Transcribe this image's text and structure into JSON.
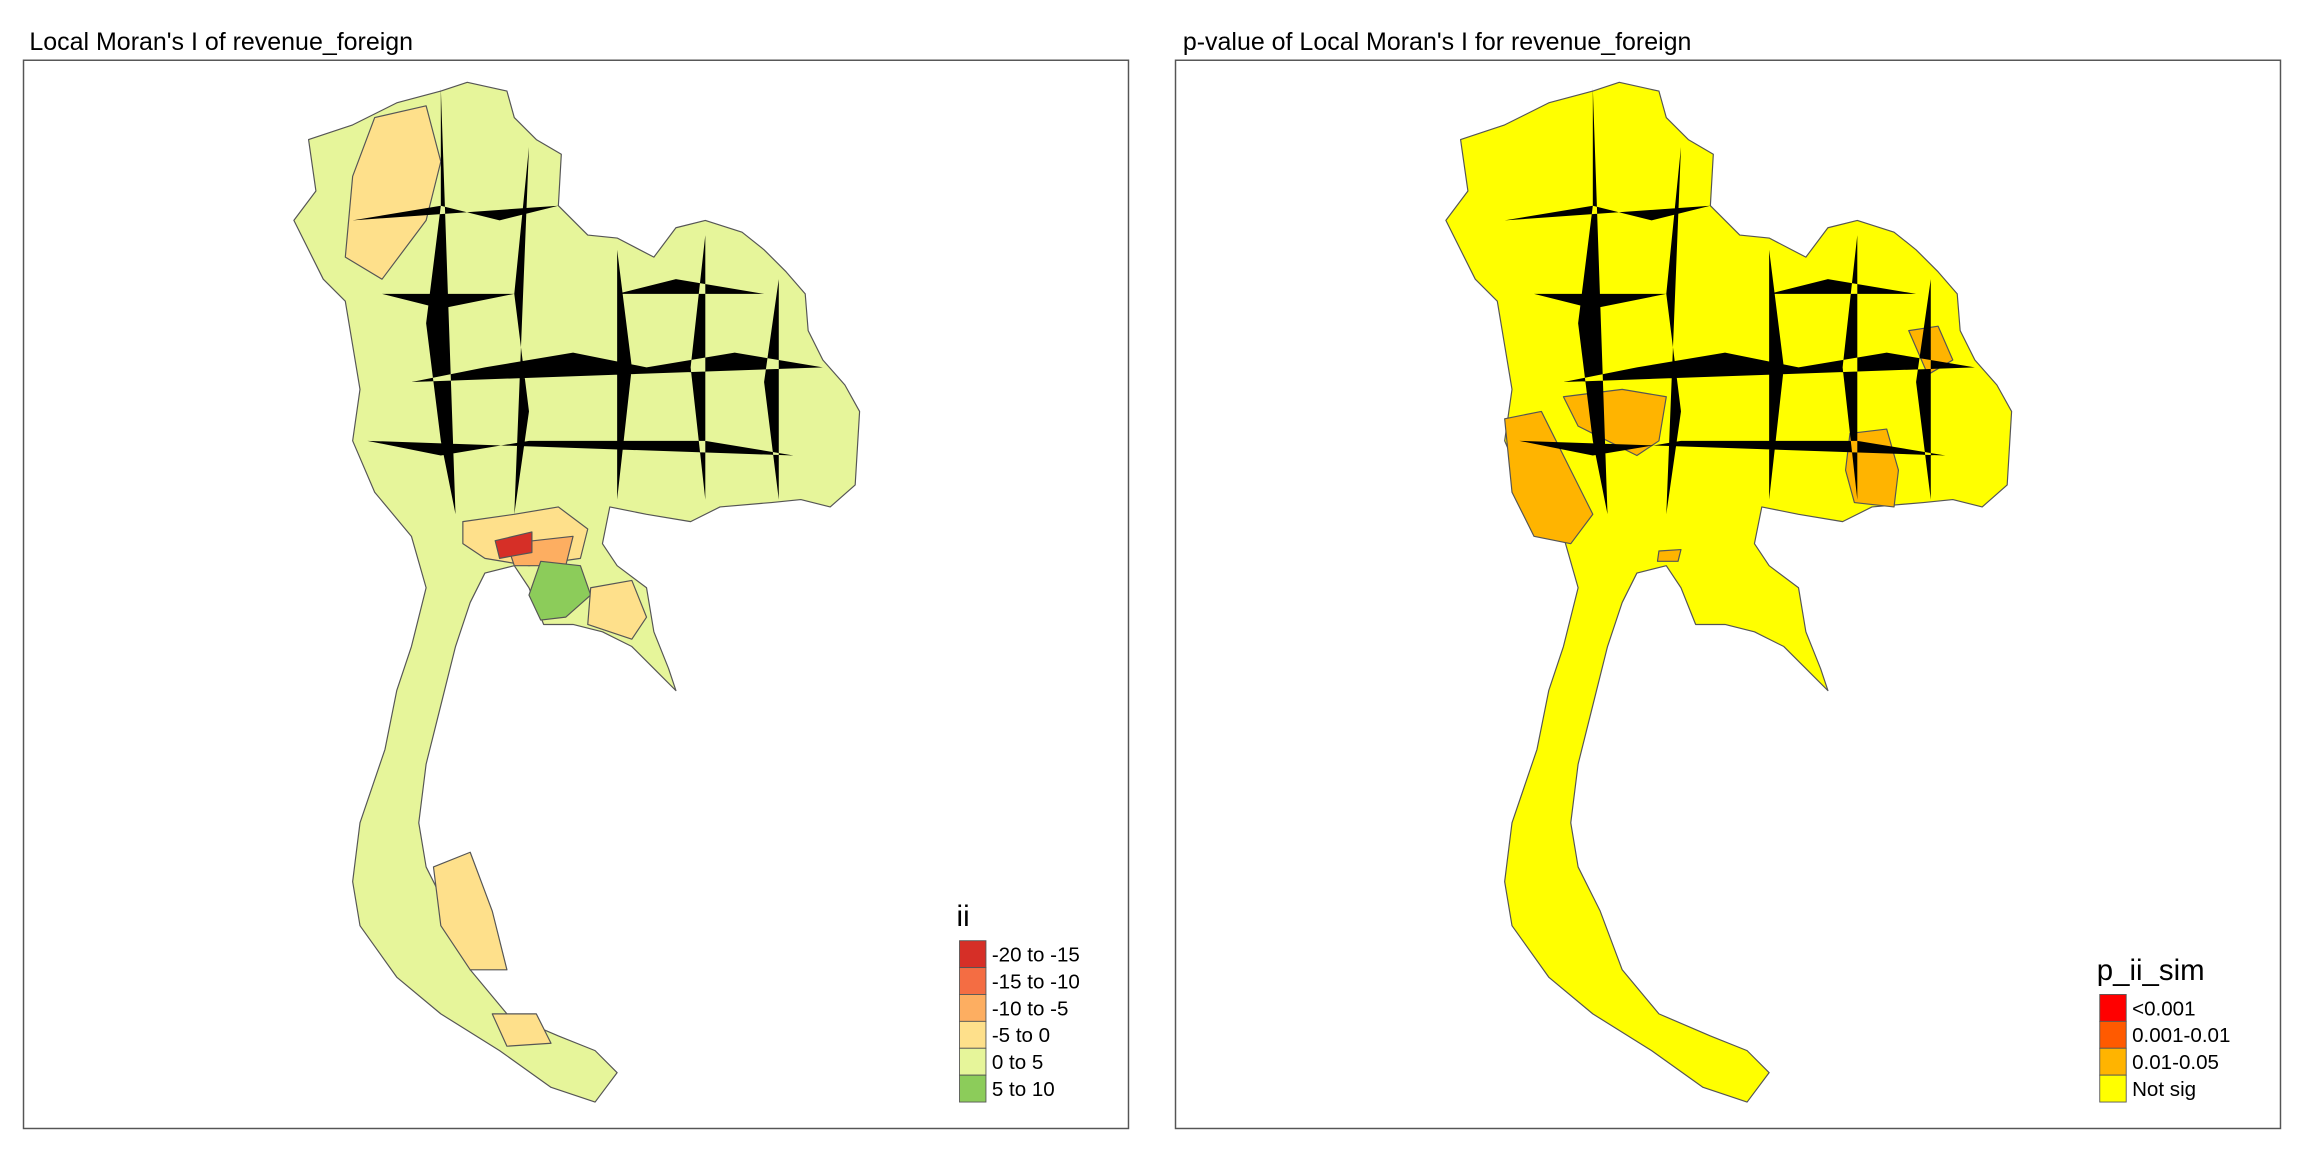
{
  "panels": [
    {
      "title": "Local Moran's I of revenue_foreign",
      "legend": {
        "title": "ii",
        "items": [
          {
            "label": "-20 to -15",
            "color": "#d62f27"
          },
          {
            "label": "-15 to -10",
            "color": "#f46d43"
          },
          {
            "label": "-10 to -5",
            "color": "#fdae61"
          },
          {
            "label": "-5 to 0",
            "color": "#fee08b"
          },
          {
            "label": "0 to 5",
            "color": "#e6f59a"
          },
          {
            "label": "5 to 10",
            "color": "#8ccc5a"
          }
        ]
      }
    },
    {
      "title": "p-value of Local Moran's I for revenue_foreign",
      "legend": {
        "title": "p_ii_sim",
        "items": [
          {
            "label": "<0.001",
            "color": "#ff0000"
          },
          {
            "label": "0.001-0.01",
            "color": "#ff5a00"
          },
          {
            "label": "0.01-0.05",
            "color": "#ffb400"
          },
          {
            "label": "Not sig",
            "color": "#ffff00"
          }
        ]
      }
    }
  ]
}
